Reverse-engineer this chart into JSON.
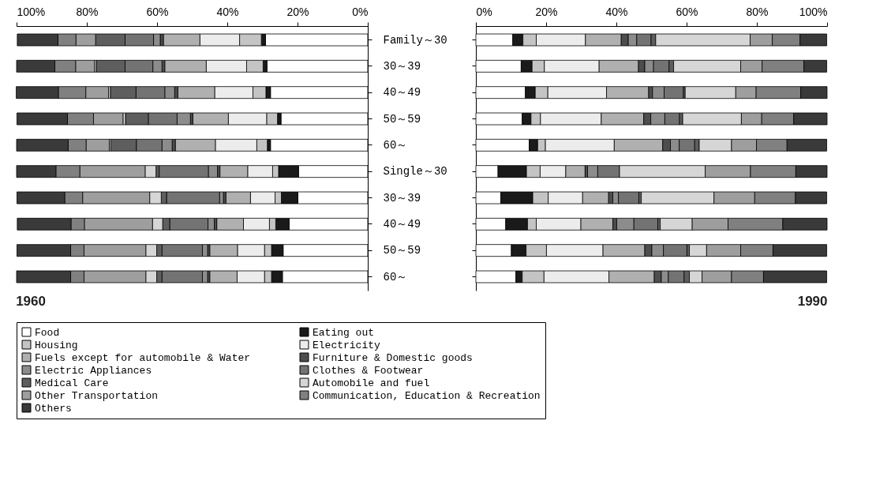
{
  "chart_data": [
    {
      "type": "bar",
      "orientation": "horizontal",
      "stacked": true,
      "title": "1960",
      "legend": "bottom",
      "grid": false,
      "categories": [
        "Family～30",
        "30～39",
        "40～49",
        "50～59",
        "60～",
        "Single～30",
        "30～39",
        "40～49",
        "50～59",
        "60～"
      ],
      "xlim": [
        100,
        0
      ],
      "xticks": [
        {
          "value": 100,
          "label": "100%"
        },
        {
          "value": 80,
          "label": "80%"
        },
        {
          "value": 60,
          "label": "60%"
        },
        {
          "value": 40,
          "label": "40%"
        },
        {
          "value": 20,
          "label": "20%"
        },
        {
          "value": 0,
          "label": "0%"
        }
      ],
      "series": [
        {
          "name": "Food",
          "color": "#ffffff",
          "values": [
            29.1,
            28.7,
            27.7,
            24.7,
            27.7,
            19.7,
            19.9,
            22.4,
            24.1,
            24.3
          ]
        },
        {
          "name": "Eating out",
          "color": "#1a1a1a",
          "values": [
            1.2,
            1.1,
            1.3,
            1.0,
            0.9,
            5.7,
            4.7,
            3.8,
            3.3,
            3.1
          ]
        },
        {
          "name": "Housing",
          "color": "#c4c4c4",
          "values": [
            6.2,
            4.7,
            3.7,
            3.1,
            3.0,
            1.7,
            1.8,
            1.8,
            2.0,
            2.0
          ]
        },
        {
          "name": "Electricity",
          "color": "#ececec",
          "values": [
            11.3,
            11.5,
            10.9,
            10.9,
            11.8,
            7.1,
            7.0,
            7.4,
            7.7,
            7.8
          ]
        },
        {
          "name": "Fuels except for automobile & Water",
          "color": "#b0b0b0",
          "values": [
            10.4,
            11.8,
            10.5,
            10.1,
            11.4,
            7.9,
            7.0,
            7.6,
            7.9,
            7.8
          ]
        },
        {
          "name": "Furniture & Domestic goods",
          "color": "#4d4d4d",
          "values": [
            0.9,
            0.8,
            0.9,
            0.7,
            0.9,
            0.7,
            0.7,
            0.7,
            0.6,
            0.6
          ]
        },
        {
          "name": "Electric Appliances",
          "color": "#8c8c8c",
          "values": [
            1.9,
            2.6,
            2.8,
            3.8,
            2.9,
            2.6,
            1.1,
            1.8,
            1.5,
            1.5
          ]
        },
        {
          "name": "Clothes & Footwear",
          "color": "#737373",
          "values": [
            8.1,
            7.9,
            8.2,
            8.2,
            7.3,
            14.0,
            15.1,
            10.9,
            11.5,
            11.5
          ]
        },
        {
          "name": "Medical Care",
          "color": "#5e5e5e",
          "values": [
            8.4,
            8.2,
            7.3,
            6.5,
            7.3,
            0.9,
            1.5,
            2.0,
            1.5,
            1.5
          ]
        },
        {
          "name": "Automobile and fuel",
          "color": "#d6d6d6",
          "values": [
            null,
            0.5,
            0.5,
            0.7,
            0.4,
            3.1,
            3.3,
            2.9,
            3.1,
            3.1
          ]
        },
        {
          "name": "Other Transportation",
          "color": "#9e9e9e",
          "values": [
            5.6,
            5.4,
            6.5,
            8.4,
            6.6,
            18.6,
            19.1,
            19.4,
            17.6,
            17.6
          ]
        },
        {
          "name": "Communication, Education & Recreation",
          "color": "#808080",
          "values": [
            5.1,
            5.9,
            7.8,
            7.4,
            5.1,
            6.8,
            5.1,
            3.8,
            3.8,
            3.8
          ]
        },
        {
          "name": "Others",
          "color": "#3a3a3a",
          "values": [
            11.6,
            10.9,
            12.0,
            14.4,
            14.7,
            11.2,
            13.6,
            15.3,
            15.3,
            15.4
          ]
        }
      ]
    },
    {
      "type": "bar",
      "orientation": "horizontal",
      "stacked": true,
      "title": "1990",
      "legend": "bottom",
      "grid": false,
      "tick_labels": "x",
      "categories": [
        "Family～30",
        "30～39",
        "40～49",
        "50～59",
        "60～",
        "Single～30",
        "30～39",
        "40～49",
        "50～59",
        "60～"
      ],
      "xlim": [
        0,
        100
      ],
      "xticks": [
        {
          "value": 0,
          "label": "0%"
        },
        {
          "value": 20,
          "label": "20%"
        },
        {
          "value": 40,
          "label": "40%"
        },
        {
          "value": 60,
          "label": "60%"
        },
        {
          "value": 80,
          "label": "80%"
        },
        {
          "value": 100,
          "label": "100%"
        }
      ],
      "series": [
        {
          "name": "Food",
          "color": "#ffffff",
          "values": [
            10.5,
            12.9,
            14.1,
            13.2,
            15.2,
            6.3,
            7.1,
            8.5,
            10.1,
            11.4
          ]
        },
        {
          "name": "Eating out",
          "color": "#1a1a1a",
          "values": [
            2.9,
            3.1,
            2.8,
            2.5,
            2.4,
            8.1,
            9.1,
            6.2,
            4.2,
            1.8
          ]
        },
        {
          "name": "Housing",
          "color": "#c4c4c4",
          "values": [
            3.8,
            3.5,
            3.6,
            2.7,
            2.2,
            3.9,
            4.4,
            2.5,
            5.8,
            6.2
          ]
        },
        {
          "name": "Electricity",
          "color": "#ececec",
          "values": [
            14.0,
            15.6,
            16.7,
            17.3,
            19.6,
            7.3,
            9.8,
            12.7,
            16.1,
            18.5
          ]
        },
        {
          "name": "Fuels except for automobile & Water",
          "color": "#b0b0b0",
          "values": [
            10.2,
            11.2,
            12.0,
            12.1,
            13.8,
            5.5,
            7.4,
            9.1,
            11.9,
            12.9
          ]
        },
        {
          "name": "Furniture & Domestic goods",
          "color": "#4d4d4d",
          "values": [
            2.0,
            1.8,
            1.1,
            2.0,
            2.2,
            0.7,
            1.2,
            1.1,
            2.0,
            2.0
          ]
        },
        {
          "name": "Electric Appliances",
          "color": "#8c8c8c",
          "values": [
            2.4,
            2.5,
            3.3,
            4.0,
            2.5,
            2.9,
            1.6,
            4.9,
            3.3,
            2.0
          ]
        },
        {
          "name": "Clothes & Footwear",
          "color": "#737373",
          "values": [
            4.1,
            4.4,
            5.5,
            4.2,
            4.4,
            6.2,
            5.8,
            6.8,
            6.7,
            4.5
          ]
        },
        {
          "name": "Medical Care",
          "color": "#5e5e5e",
          "values": [
            1.3,
            1.3,
            0.5,
            0.9,
            1.3,
            null,
            0.7,
            0.7,
            0.7,
            1.5
          ]
        },
        {
          "name": "Automobile and fuel",
          "color": "#d6d6d6",
          "values": [
            26.9,
            19.1,
            14.4,
            16.7,
            9.2,
            24.4,
            20.7,
            9.1,
            4.9,
            3.6
          ]
        },
        {
          "name": "Other Transportation",
          "color": "#9e9e9e",
          "values": [
            6.3,
            6.1,
            5.8,
            5.8,
            7.1,
            12.9,
            11.6,
            10.2,
            9.7,
            8.4
          ]
        },
        {
          "name": "Communication, Education & Recreation",
          "color": "#808080",
          "values": [
            7.9,
            11.9,
            12.7,
            9.1,
            8.7,
            12.9,
            11.6,
            15.6,
            9.2,
            9.1
          ]
        },
        {
          "name": "Others",
          "color": "#3a3a3a",
          "values": [
            7.6,
            6.5,
            7.5,
            9.5,
            11.3,
            8.9,
            8.9,
            12.6,
            15.3,
            18.0
          ]
        }
      ]
    }
  ]
}
